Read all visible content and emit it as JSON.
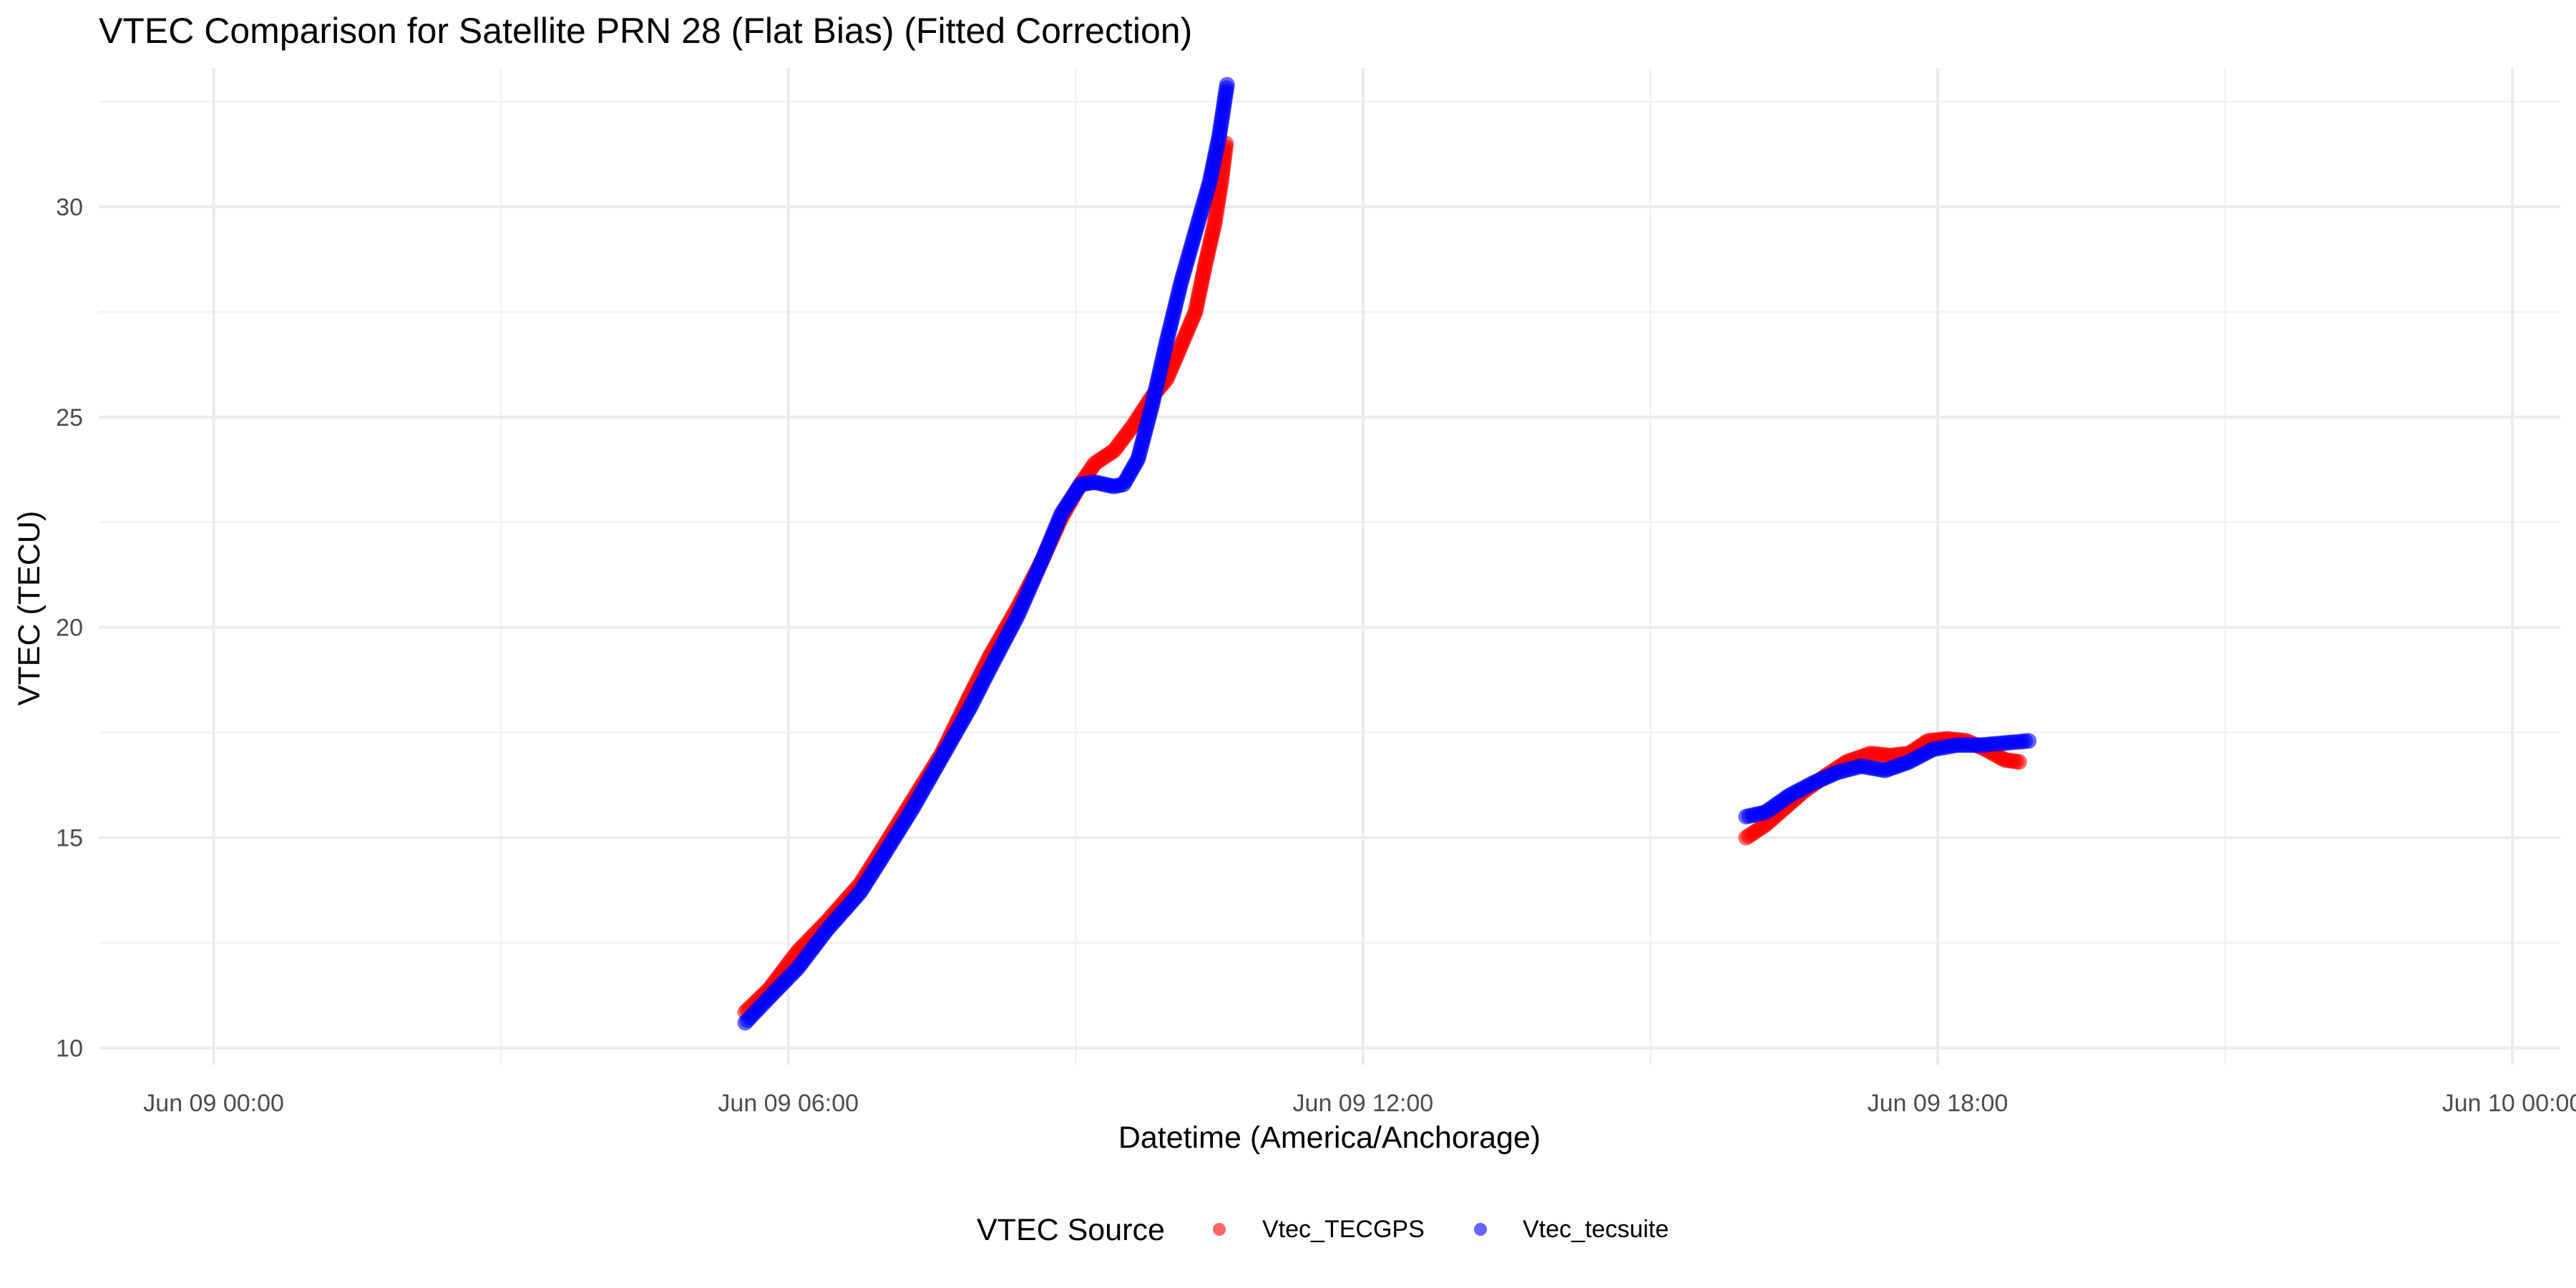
{
  "chart_data": {
    "type": "scatter",
    "title": "VTEC Comparison for Satellite PRN 28 (Flat Bias)   (Fitted Correction)",
    "xlabel": "Datetime (America/Anchorage)",
    "ylabel": "VTEC (TECU)",
    "x_unit": "hours since Jun 09 00:00",
    "xlim": [
      -1.2,
      24.5
    ],
    "ylim": [
      9.6,
      33.3
    ],
    "x_ticks": [
      {
        "value": 0,
        "label": "Jun 09 00:00"
      },
      {
        "value": 6,
        "label": "Jun 09 06:00"
      },
      {
        "value": 12,
        "label": "Jun 09 12:00"
      },
      {
        "value": 18,
        "label": "Jun 09 18:00"
      },
      {
        "value": 24,
        "label": "Jun 10 00:00"
      }
    ],
    "x_minor": [
      -3,
      3,
      9,
      15,
      21
    ],
    "y_ticks": [
      {
        "value": 10,
        "label": "10"
      },
      {
        "value": 15,
        "label": "15"
      },
      {
        "value": 20,
        "label": "20"
      },
      {
        "value": 25,
        "label": "25"
      },
      {
        "value": 30,
        "label": "30"
      }
    ],
    "y_minor": [
      12.5,
      17.5,
      22.5,
      27.5,
      32.5
    ],
    "grid": true,
    "legend": {
      "title": "VTEC Source",
      "position": "bottom"
    },
    "series": [
      {
        "name": "Vtec_TECGPS",
        "color": "#ff0000",
        "segments": [
          [
            [
              5.55,
              10.85
            ],
            [
              5.8,
              11.4
            ],
            [
              6.1,
              12.3
            ],
            [
              6.4,
              13.0
            ],
            [
              6.75,
              13.9
            ],
            [
              7.0,
              14.8
            ],
            [
              7.3,
              15.9
            ],
            [
              7.6,
              17.0
            ],
            [
              7.9,
              18.4
            ],
            [
              8.1,
              19.3
            ],
            [
              8.4,
              20.5
            ],
            [
              8.65,
              21.6
            ],
            [
              8.85,
              22.6
            ],
            [
              9.05,
              23.4
            ],
            [
              9.2,
              23.9
            ],
            [
              9.4,
              24.2
            ],
            [
              9.6,
              24.8
            ],
            [
              9.8,
              25.5
            ],
            [
              9.95,
              25.9
            ],
            [
              10.1,
              26.7
            ],
            [
              10.25,
              27.5
            ],
            [
              10.35,
              28.6
            ],
            [
              10.45,
              29.6
            ],
            [
              10.52,
              30.6
            ],
            [
              10.57,
              31.5
            ]
          ],
          [
            [
              16.0,
              15.0
            ],
            [
              16.2,
              15.3
            ],
            [
              16.4,
              15.7
            ],
            [
              16.6,
              16.1
            ],
            [
              16.85,
              16.5
            ],
            [
              17.05,
              16.8
            ],
            [
              17.3,
              17.0
            ],
            [
              17.5,
              16.95
            ],
            [
              17.7,
              17.0
            ],
            [
              17.9,
              17.3
            ],
            [
              18.1,
              17.35
            ],
            [
              18.3,
              17.3
            ],
            [
              18.5,
              17.1
            ],
            [
              18.7,
              16.85
            ],
            [
              18.85,
              16.8
            ]
          ]
        ]
      },
      {
        "name": "Vtec_tecsuite",
        "color": "#0000ff",
        "segments": [
          [
            [
              5.55,
              10.6
            ],
            [
              5.8,
              11.2
            ],
            [
              6.1,
              11.9
            ],
            [
              6.4,
              12.8
            ],
            [
              6.75,
              13.7
            ],
            [
              7.0,
              14.6
            ],
            [
              7.3,
              15.7
            ],
            [
              7.6,
              16.9
            ],
            [
              7.9,
              18.1
            ],
            [
              8.1,
              19.0
            ],
            [
              8.4,
              20.3
            ],
            [
              8.65,
              21.6
            ],
            [
              8.85,
              22.7
            ],
            [
              9.05,
              23.4
            ],
            [
              9.2,
              23.45
            ],
            [
              9.4,
              23.35
            ],
            [
              9.5,
              23.4
            ],
            [
              9.65,
              24.0
            ],
            [
              9.8,
              25.3
            ],
            [
              9.95,
              26.8
            ],
            [
              10.1,
              28.2
            ],
            [
              10.25,
              29.4
            ],
            [
              10.4,
              30.6
            ],
            [
              10.5,
              31.7
            ],
            [
              10.58,
              32.9
            ]
          ],
          [
            [
              16.0,
              15.5
            ],
            [
              16.2,
              15.6
            ],
            [
              16.45,
              16.0
            ],
            [
              16.7,
              16.3
            ],
            [
              16.95,
              16.55
            ],
            [
              17.2,
              16.7
            ],
            [
              17.45,
              16.6
            ],
            [
              17.7,
              16.8
            ],
            [
              17.95,
              17.1
            ],
            [
              18.2,
              17.2
            ],
            [
              18.45,
              17.2
            ],
            [
              18.7,
              17.25
            ],
            [
              18.95,
              17.3
            ]
          ]
        ]
      }
    ]
  }
}
